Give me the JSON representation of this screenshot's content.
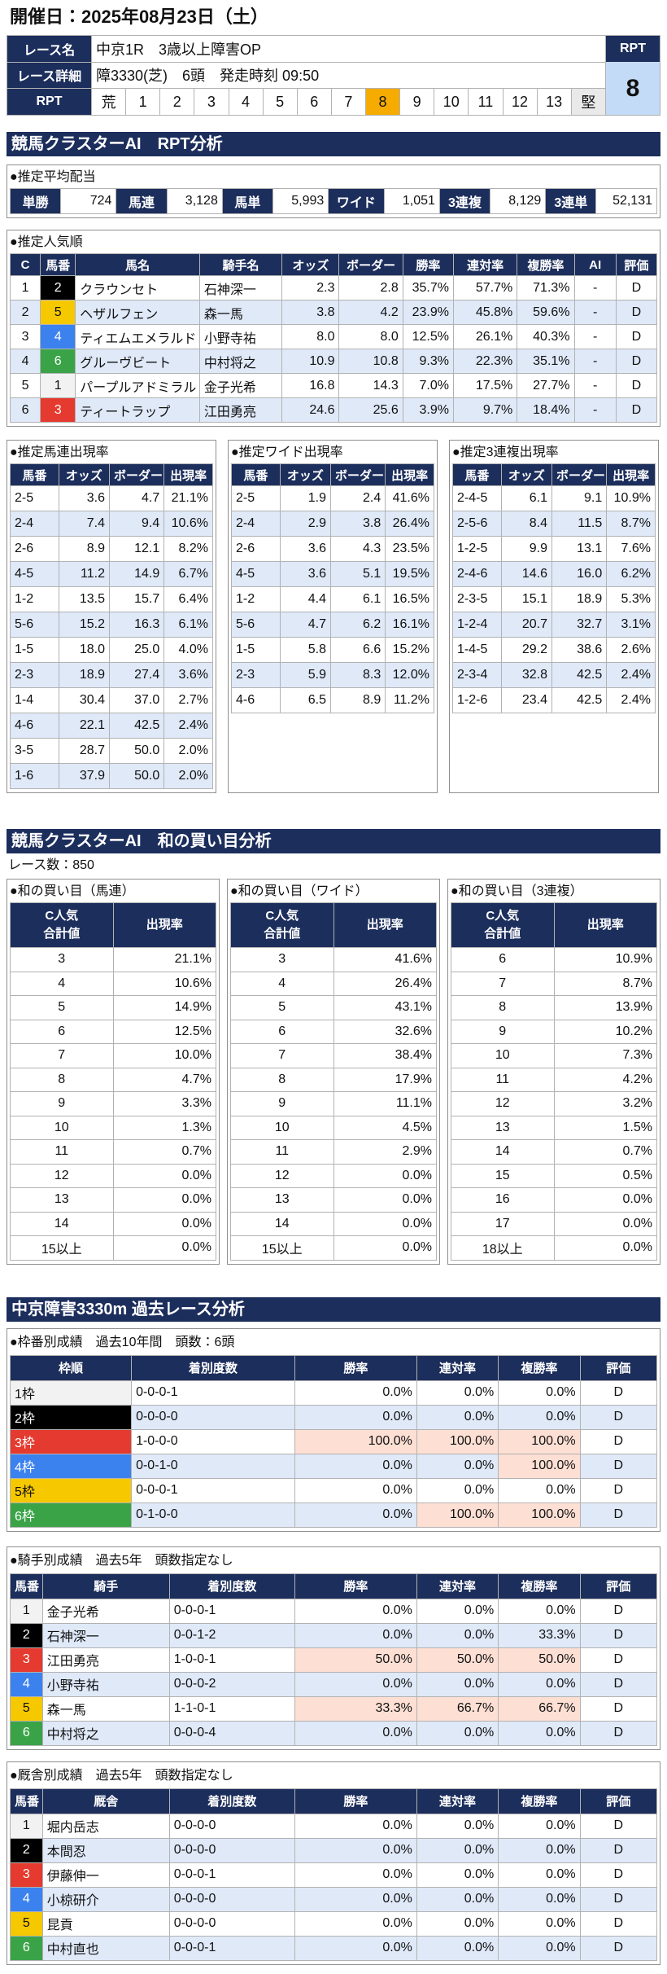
{
  "header": {
    "date": "開催日：2025年08月23日（土）"
  },
  "race": {
    "labels": [
      "レース名",
      "レース詳細",
      "RPT"
    ],
    "name": "中京1R　3歳以上障害OP",
    "detail": "障3330(芝)　6頭　発走時刻 09:50",
    "rpt_scale": [
      "荒",
      1,
      2,
      3,
      4,
      5,
      6,
      7,
      8,
      9,
      10,
      11,
      12,
      13,
      "堅"
    ],
    "rpt_label": "RPT",
    "rpt_value": 8
  },
  "frame_colors": [
    "#ffffff",
    "#000000",
    "#e53a2f",
    "#3b82ee",
    "#f5c800",
    "#3aa347"
  ],
  "rpt_analysis": {
    "title": "競馬クラスターAI　RPT分析",
    "payout": {
      "title": "●推定平均配当",
      "items": [
        {
          "label": "単勝",
          "value": "724"
        },
        {
          "label": "馬連",
          "value": "3,128"
        },
        {
          "label": "馬単",
          "value": "5,993"
        },
        {
          "label": "ワイド",
          "value": "1,051"
        },
        {
          "label": "3連複",
          "value": "8,129"
        },
        {
          "label": "3連単",
          "value": "52,131"
        }
      ]
    },
    "popularity": {
      "title": "●推定人気順",
      "columns": [
        "C",
        "馬番",
        "馬名",
        "騎手名",
        "オッズ",
        "ボーダー",
        "勝率",
        "連対率",
        "複勝率",
        "AI",
        "評価"
      ],
      "rows": [
        [
          "1",
          "2",
          "クラウンセト",
          "石神深一",
          "2.3",
          "2.8",
          "35.7%",
          "57.7%",
          "71.3%",
          "-",
          "D"
        ],
        [
          "2",
          "5",
          "ヘザルフェン",
          "森一馬",
          "3.8",
          "4.2",
          "23.9%",
          "45.8%",
          "59.6%",
          "-",
          "D"
        ],
        [
          "3",
          "4",
          "ティエムエメラルド",
          "小野寺祐",
          "8.0",
          "8.0",
          "12.5%",
          "26.1%",
          "40.3%",
          "-",
          "D"
        ],
        [
          "4",
          "6",
          "グルーヴビート",
          "中村将之",
          "10.9",
          "10.8",
          "9.3%",
          "22.3%",
          "35.1%",
          "-",
          "D"
        ],
        [
          "5",
          "1",
          "パープルアドミラル",
          "金子光希",
          "16.8",
          "14.3",
          "7.0%",
          "17.5%",
          "27.7%",
          "-",
          "D"
        ],
        [
          "6",
          "3",
          "ティートラップ",
          "江田勇亮",
          "24.6",
          "25.6",
          "3.9%",
          "9.7%",
          "18.4%",
          "-",
          "D"
        ]
      ]
    },
    "combos": [
      {
        "title": "●推定馬連出現率",
        "columns": [
          "馬番",
          "オッズ",
          "ボーダー",
          "出現率"
        ],
        "rows": [
          [
            "2-5",
            "3.6",
            "4.7",
            "21.1%"
          ],
          [
            "2-4",
            "7.4",
            "9.4",
            "10.6%"
          ],
          [
            "2-6",
            "8.9",
            "12.1",
            "8.2%"
          ],
          [
            "4-5",
            "11.2",
            "14.9",
            "6.7%"
          ],
          [
            "1-2",
            "13.5",
            "15.7",
            "6.4%"
          ],
          [
            "5-6",
            "15.2",
            "16.3",
            "6.1%"
          ],
          [
            "1-5",
            "18.0",
            "25.0",
            "4.0%"
          ],
          [
            "2-3",
            "18.9",
            "27.4",
            "3.6%"
          ],
          [
            "1-4",
            "30.4",
            "37.0",
            "2.7%"
          ],
          [
            "4-6",
            "22.1",
            "42.5",
            "2.4%"
          ],
          [
            "3-5",
            "28.7",
            "50.0",
            "2.0%"
          ],
          [
            "1-6",
            "37.9",
            "50.0",
            "2.0%"
          ]
        ]
      },
      {
        "title": "●推定ワイド出現率",
        "columns": [
          "馬番",
          "オッズ",
          "ボーダー",
          "出現率"
        ],
        "rows": [
          [
            "2-5",
            "1.9",
            "2.4",
            "41.6%"
          ],
          [
            "2-4",
            "2.9",
            "3.8",
            "26.4%"
          ],
          [
            "2-6",
            "3.6",
            "4.3",
            "23.5%"
          ],
          [
            "4-5",
            "3.6",
            "5.1",
            "19.5%"
          ],
          [
            "1-2",
            "4.4",
            "6.1",
            "16.5%"
          ],
          [
            "5-6",
            "4.7",
            "6.2",
            "16.1%"
          ],
          [
            "1-5",
            "5.8",
            "6.6",
            "15.2%"
          ],
          [
            "2-3",
            "5.9",
            "8.3",
            "12.0%"
          ],
          [
            "4-6",
            "6.5",
            "8.9",
            "11.2%"
          ]
        ]
      },
      {
        "title": "●推定3連複出現率",
        "columns": [
          "馬番",
          "オッズ",
          "ボーダー",
          "出現率"
        ],
        "rows": [
          [
            "2-4-5",
            "6.1",
            "9.1",
            "10.9%"
          ],
          [
            "2-5-6",
            "8.4",
            "11.5",
            "8.7%"
          ],
          [
            "1-2-5",
            "9.9",
            "13.1",
            "7.6%"
          ],
          [
            "2-4-6",
            "14.6",
            "16.0",
            "6.2%"
          ],
          [
            "2-3-5",
            "15.1",
            "18.9",
            "5.3%"
          ],
          [
            "1-2-4",
            "20.7",
            "32.7",
            "3.1%"
          ],
          [
            "1-4-5",
            "29.2",
            "38.6",
            "2.6%"
          ],
          [
            "2-3-4",
            "32.8",
            "42.5",
            "2.4%"
          ],
          [
            "1-2-6",
            "23.4",
            "42.5",
            "2.4%"
          ]
        ]
      }
    ]
  },
  "sum_analysis": {
    "title": "競馬クラスターAI　和の買い目分析",
    "race_count": "レース数：850",
    "tables": [
      {
        "title": "●和の買い目（馬連）",
        "columns": [
          "C人気\n合計値",
          "出現率"
        ],
        "rows": [
          [
            "3",
            "21.1%"
          ],
          [
            "4",
            "10.6%"
          ],
          [
            "5",
            "14.9%"
          ],
          [
            "6",
            "12.5%"
          ],
          [
            "7",
            "10.0%"
          ],
          [
            "8",
            "4.7%"
          ],
          [
            "9",
            "3.3%"
          ],
          [
            "10",
            "1.3%"
          ],
          [
            "11",
            "0.7%"
          ],
          [
            "12",
            "0.0%"
          ],
          [
            "13",
            "0.0%"
          ],
          [
            "14",
            "0.0%"
          ],
          [
            "15以上",
            "0.0%"
          ]
        ]
      },
      {
        "title": "●和の買い目（ワイド）",
        "columns": [
          "C人気\n合計値",
          "出現率"
        ],
        "rows": [
          [
            "3",
            "41.6%"
          ],
          [
            "4",
            "26.4%"
          ],
          [
            "5",
            "43.1%"
          ],
          [
            "6",
            "32.6%"
          ],
          [
            "7",
            "38.4%"
          ],
          [
            "8",
            "17.9%"
          ],
          [
            "9",
            "11.1%"
          ],
          [
            "10",
            "4.5%"
          ],
          [
            "11",
            "2.9%"
          ],
          [
            "12",
            "0.0%"
          ],
          [
            "13",
            "0.0%"
          ],
          [
            "14",
            "0.0%"
          ],
          [
            "15以上",
            "0.0%"
          ]
        ]
      },
      {
        "title": "●和の買い目（3連複）",
        "columns": [
          "C人気\n合計値",
          "出現率"
        ],
        "rows": [
          [
            "6",
            "10.9%"
          ],
          [
            "7",
            "8.7%"
          ],
          [
            "8",
            "13.9%"
          ],
          [
            "9",
            "10.2%"
          ],
          [
            "10",
            "7.3%"
          ],
          [
            "11",
            "4.2%"
          ],
          [
            "12",
            "3.2%"
          ],
          [
            "13",
            "1.5%"
          ],
          [
            "14",
            "0.7%"
          ],
          [
            "15",
            "0.5%"
          ],
          [
            "16",
            "0.0%"
          ],
          [
            "17",
            "0.0%"
          ],
          [
            "18以上",
            "0.0%"
          ]
        ]
      }
    ]
  },
  "past": {
    "title": "中京障害3330m 過去レース分析",
    "tables": [
      {
        "title": "●枠番別成績　過去10年間　頭数：6頭",
        "columns": [
          "枠順",
          "着別度数",
          "勝率",
          "連対率",
          "複勝率",
          "評価"
        ],
        "rows": [
          [
            "1枠",
            "0-0-0-1",
            "0.0%",
            "0.0%",
            "0.0%",
            "D"
          ],
          [
            "2枠",
            "0-0-0-0",
            "0.0%",
            "0.0%",
            "0.0%",
            "D"
          ],
          [
            "3枠",
            "1-0-0-0",
            "100.0%",
            "100.0%",
            "100.0%",
            "D"
          ],
          [
            "4枠",
            "0-0-1-0",
            "0.0%",
            "0.0%",
            "100.0%",
            "D"
          ],
          [
            "5枠",
            "0-0-0-1",
            "0.0%",
            "0.0%",
            "0.0%",
            "D"
          ],
          [
            "6枠",
            "0-1-0-0",
            "0.0%",
            "100.0%",
            "100.0%",
            "D"
          ]
        ],
        "highlight": [
          [
            2,
            2
          ],
          [
            2,
            3
          ],
          [
            2,
            4
          ],
          [
            3,
            4
          ],
          [
            5,
            3
          ],
          [
            5,
            4
          ]
        ]
      },
      {
        "title": "●騎手別成績　過去5年　頭数指定なし",
        "columns": [
          "馬番",
          "騎手",
          "着別度数",
          "勝率",
          "連対率",
          "複勝率",
          "評価"
        ],
        "rows": [
          [
            "1",
            "金子光希",
            "0-0-0-1",
            "0.0%",
            "0.0%",
            "0.0%",
            "D"
          ],
          [
            "2",
            "石神深一",
            "0-0-1-2",
            "0.0%",
            "0.0%",
            "33.3%",
            "D"
          ],
          [
            "3",
            "江田勇亮",
            "1-0-0-1",
            "50.0%",
            "50.0%",
            "50.0%",
            "D"
          ],
          [
            "4",
            "小野寺祐",
            "0-0-0-2",
            "0.0%",
            "0.0%",
            "0.0%",
            "D"
          ],
          [
            "5",
            "森一馬",
            "1-1-0-1",
            "33.3%",
            "66.7%",
            "66.7%",
            "D"
          ],
          [
            "6",
            "中村将之",
            "0-0-0-4",
            "0.0%",
            "0.0%",
            "0.0%",
            "D"
          ]
        ],
        "highlight": [
          [
            2,
            3
          ],
          [
            2,
            4
          ],
          [
            2,
            5
          ],
          [
            4,
            3
          ],
          [
            4,
            4
          ],
          [
            4,
            5
          ]
        ]
      },
      {
        "title": "●厩舎別成績　過去5年　頭数指定なし",
        "columns": [
          "馬番",
          "厩舎",
          "着別度数",
          "勝率",
          "連対率",
          "複勝率",
          "評価"
        ],
        "rows": [
          [
            "1",
            "堀内岳志",
            "0-0-0-0",
            "0.0%",
            "0.0%",
            "0.0%",
            "D"
          ],
          [
            "2",
            "本間忍",
            "0-0-0-0",
            "0.0%",
            "0.0%",
            "0.0%",
            "D"
          ],
          [
            "3",
            "伊藤伸一",
            "0-0-0-1",
            "0.0%",
            "0.0%",
            "0.0%",
            "D"
          ],
          [
            "4",
            "小椋研介",
            "0-0-0-0",
            "0.0%",
            "0.0%",
            "0.0%",
            "D"
          ],
          [
            "5",
            "昆貢",
            "0-0-0-0",
            "0.0%",
            "0.0%",
            "0.0%",
            "D"
          ],
          [
            "6",
            "中村直也",
            "0-0-0-1",
            "0.0%",
            "0.0%",
            "0.0%",
            "D"
          ]
        ]
      }
    ]
  }
}
